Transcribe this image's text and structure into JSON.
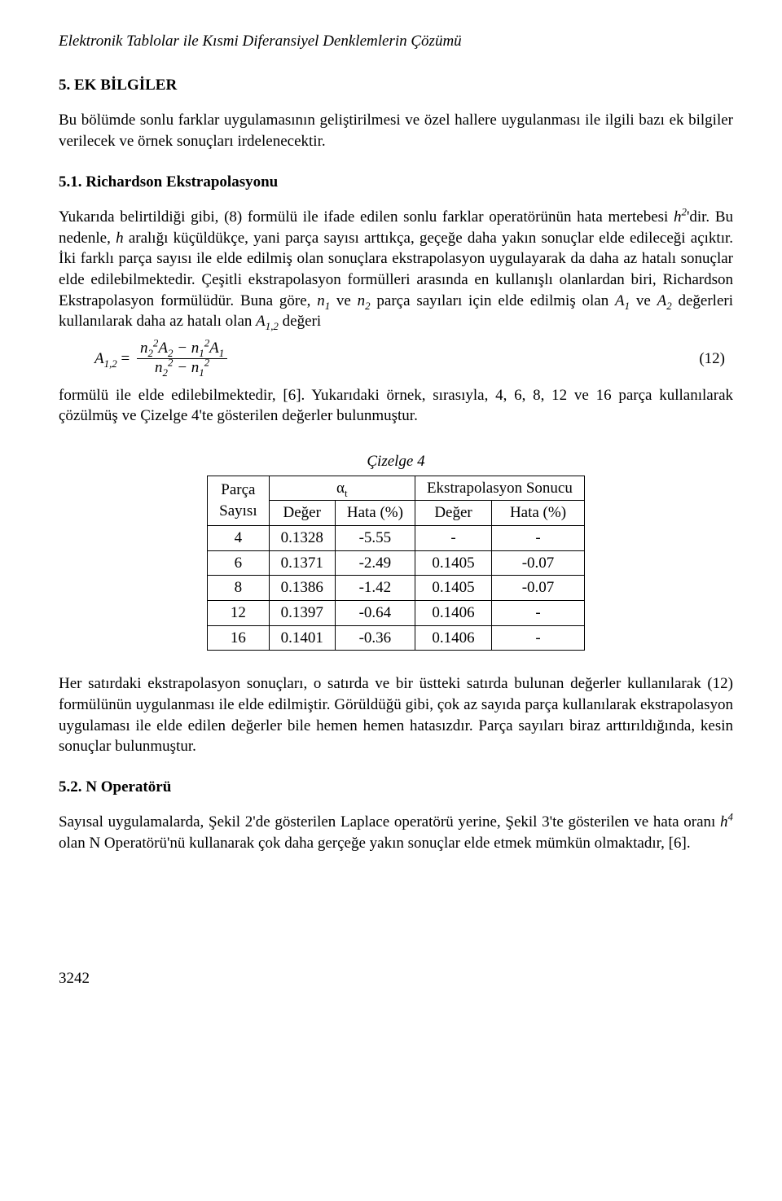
{
  "header": "Elektronik Tablolar ile Kısmi Diferansiyel Denklemlerin Çözümü",
  "section5": {
    "title": "5. EK BİLGİLER",
    "intro": "Bu bölümde sonlu farklar uygulamasının geliştirilmesi ve özel hallere uygulanması ile ilgili bazı ek bilgiler verilecek ve örnek sonuçları irdelenecektir."
  },
  "section51": {
    "title": "5.1. Richardson Ekstrapolasyonu",
    "p1a": "Yukarıda belirtildiği gibi, (8) formülü ile ifade edilen sonlu farklar operatörünün hata mertebesi ",
    "p1b": "'dir. Bu nedenle, ",
    "p1c": " aralığı küçüldükçe, yani parça sayısı arttıkça, geçeğe daha yakın sonuçlar elde edileceği açıktır. İki farklı parça sayısı ile elde edilmiş olan sonuçlara ekstrapolasyon uygulayarak da daha az hatalı sonuçlar elde edilebilmektedir. Çeşitli ekstrapolasyon formülleri arasında en kullanışlı olanlardan biri, Richardson Ekstrapolasyon formülüdür. Buna göre, ",
    "p1d": " ve ",
    "p1e": " parça sayıları için elde edilmiş olan ",
    "p1f": " ve ",
    "p1g": " değerleri kullanılarak daha az hatalı olan ",
    "p1h": " değeri",
    "eq_lhs": "A",
    "eq_lhs_sub": "1,2",
    "eq_num": "(12)",
    "p2a": "formülü ile elde edilebilmektedir, [6]. Yukarıdaki örnek, sırasıyla, 4, 6, 8, 12 ve 16 parça kullanılarak çözülmüş ve Çizelge 4'te gösterilen değerler bulunmuştur."
  },
  "table4": {
    "caption": "Çizelge 4",
    "head_parca1": "Parça",
    "head_parca2": "Sayısı",
    "head_alpha": "αt",
    "head_ext": "Ekstrapolasyon Sonucu",
    "col_deger": "Değer",
    "col_hata": "Hata (%)",
    "rows": [
      {
        "n": "4",
        "v": "0.1328",
        "e": "-5.55",
        "xv": "-",
        "xe": "-"
      },
      {
        "n": "6",
        "v": "0.1371",
        "e": "-2.49",
        "xv": "0.1405",
        "xe": "-0.07"
      },
      {
        "n": "8",
        "v": "0.1386",
        "e": "-1.42",
        "xv": "0.1405",
        "xe": "-0.07"
      },
      {
        "n": "12",
        "v": "0.1397",
        "e": "-0.64",
        "xv": "0.1406",
        "xe": "-"
      },
      {
        "n": "16",
        "v": "0.1401",
        "e": "-0.36",
        "xv": "0.1406",
        "xe": "-"
      }
    ]
  },
  "after_table": "Her satırdaki ekstrapolasyon sonuçları, o satırda ve bir üstteki satırda bulunan değerler kullanılarak (12) formülünün uygulanması ile elde edilmiştir. Görüldüğü gibi, çok az sayıda parça kullanılarak ekstrapolasyon uygulaması ile elde edilen değerler bile hemen hemen hatasızdır. Parça sayıları biraz arttırıldığında, kesin sonuçlar bulunmuştur.",
  "section52": {
    "title": "5.2. N Operatörü",
    "p1a": "Sayısal uygulamalarda, Şekil 2'de gösterilen Laplace operatörü yerine, Şekil 3'te gösterilen ve hata oranı ",
    "p1b": " olan N Operatörü'nü kullanarak çok daha gerçeğe yakın sonuçlar elde etmek mümkün olmaktadır, [6]."
  },
  "page_number": "3242"
}
